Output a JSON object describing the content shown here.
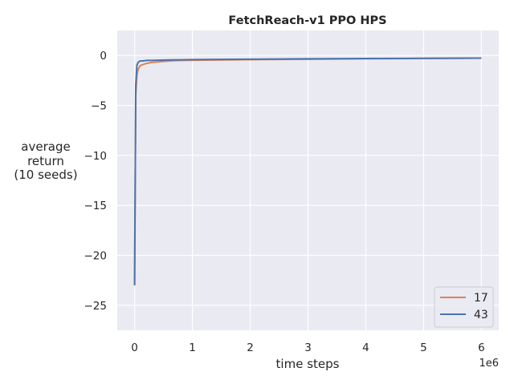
{
  "chart_data": {
    "type": "line",
    "title": "FetchReach-v1 PPO HPS",
    "xlabel": "time steps",
    "ylabel": [
      "average",
      "return",
      "(10 seeds)"
    ],
    "x_scale_label": "1e6",
    "xlim": [
      -300000,
      6300000
    ],
    "ylim": [
      -27.5,
      2.5
    ],
    "x_ticks": [
      0,
      1,
      2,
      3,
      4,
      5,
      6
    ],
    "x_tick_labels": [
      "0",
      "1",
      "2",
      "3",
      "4",
      "5",
      "6"
    ],
    "y_ticks": [
      0,
      -5,
      -10,
      -15,
      -20,
      -25
    ],
    "y_tick_labels": [
      "0",
      "−5",
      "−10",
      "−15",
      "−20",
      "−25"
    ],
    "grid": true,
    "legend": "lower-right",
    "background": "#eaeaf2",
    "series": [
      {
        "name": "17",
        "color": "#dd8452",
        "x": [
          0,
          20000,
          40000,
          60000,
          80000,
          100000,
          150000,
          200000,
          300000,
          400000,
          500000,
          600000,
          800000,
          1000000,
          1500000,
          2000000,
          2500000,
          3000000,
          4000000,
          5000000,
          6000000
        ],
        "y": [
          -23.0,
          -4.0,
          -2.0,
          -1.4,
          -1.2,
          -1.0,
          -0.9,
          -0.8,
          -0.7,
          -0.65,
          -0.6,
          -0.55,
          -0.5,
          -0.48,
          -0.45,
          -0.42,
          -0.4,
          -0.38,
          -0.33,
          -0.3,
          -0.27
        ]
      },
      {
        "name": "43",
        "color": "#4c72b0",
        "x": [
          0,
          20000,
          40000,
          60000,
          80000,
          100000,
          150000,
          200000,
          300000,
          400000,
          500000,
          600000,
          800000,
          1000000,
          1500000,
          2000000,
          2500000,
          3000000,
          4000000,
          5000000,
          6000000
        ],
        "y": [
          -23.0,
          -3.0,
          -1.0,
          -0.7,
          -0.6,
          -0.55,
          -0.55,
          -0.5,
          -0.5,
          -0.48,
          -0.47,
          -0.45,
          -0.44,
          -0.42,
          -0.4,
          -0.38,
          -0.36,
          -0.34,
          -0.31,
          -0.29,
          -0.27
        ]
      }
    ]
  }
}
